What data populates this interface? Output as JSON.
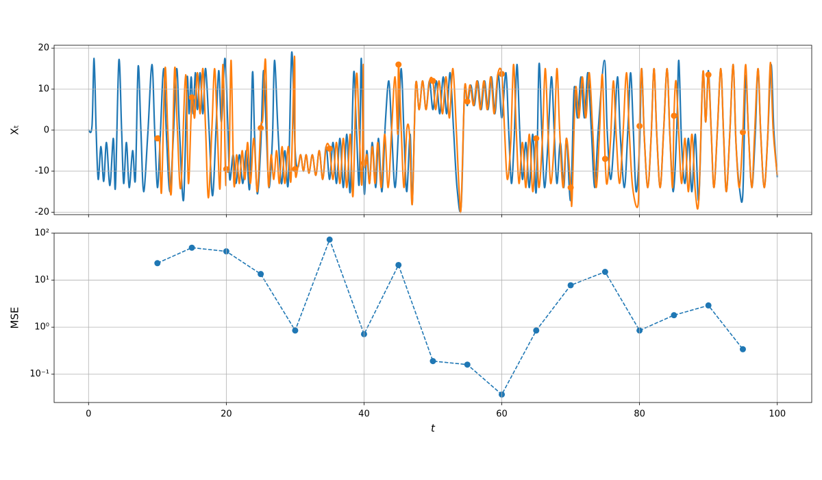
{
  "chart_data": [
    {
      "type": "line",
      "ylabel": "Xₜ",
      "ylim": [
        -20.6,
        20.7
      ],
      "yticks": [
        -20,
        -10,
        0,
        10,
        20
      ],
      "grid": true,
      "series": [
        {
          "color": "#1f77b4",
          "x": [
            0,
            0.5,
            0.8,
            1.1,
            1.4,
            1.8,
            2.2,
            2.6,
            3.1,
            3.6,
            3.9,
            4.4,
            4.8,
            5.1,
            5.5,
            5.9,
            6.4,
            6.8,
            7.2,
            7.6,
            8,
            8.6,
            9.2,
            9.6,
            10,
            10.4,
            10.9,
            11.3,
            11.8,
            12.3,
            12.8,
            13.2,
            13.8,
            14.3,
            14.6,
            14.9,
            15.2,
            15.5,
            15.8,
            16.2,
            16.6,
            17,
            17.5,
            18,
            18.5,
            18.9,
            19.3,
            19.8,
            20.2,
            20.5,
            21,
            21.4,
            21.9,
            22.4,
            22.9,
            23.4,
            23.8,
            24.1,
            24.5,
            25,
            25.4,
            25.8,
            26.2,
            26.7,
            27,
            27.5,
            28,
            28.5,
            29,
            29.5,
            30,
            30.4,
            30.8,
            31.2,
            31.6,
            32,
            32.5,
            33,
            33.5,
            34,
            34.5,
            35,
            35.5,
            36,
            36.5,
            37,
            37.5,
            38,
            38.5,
            38.9,
            39.3,
            39.6,
            40,
            40.4,
            40.8,
            41.2,
            41.7,
            42.1,
            42.6,
            43.1,
            43.6,
            44,
            44.5,
            45,
            45.4,
            45.8,
            46.2,
            46.7,
            47,
            47.5,
            48,
            48.5,
            49,
            49.5,
            50,
            50.5,
            51,
            51.5,
            52,
            52.5,
            53,
            53.5,
            54.1,
            54.6,
            55,
            55.5,
            56,
            56.5,
            57,
            57.5,
            58,
            58.5,
            59,
            59.5,
            60,
            60.6,
            61,
            61.4,
            61.8,
            62.2,
            62.6,
            63,
            63.5,
            64,
            64.5,
            65,
            65.4,
            65.8,
            66.2,
            66.7,
            67.2,
            67.6,
            68,
            68.5,
            69,
            69.4,
            70,
            70.5,
            71,
            71.5,
            72,
            72.5,
            73,
            73.5,
            74,
            74.9,
            75.3,
            75.8,
            76.3,
            76.8,
            77.2,
            77.8,
            78.3,
            78.7,
            79.1,
            79.5,
            80,
            80.3,
            80.7,
            81.2,
            81.7,
            82.1,
            82.5,
            83,
            83.5,
            84,
            84.4,
            84.9,
            85.4,
            85.7,
            86.1,
            86.6,
            87.1,
            87.6,
            88.1,
            88.6,
            89.2,
            89.6,
            90,
            90.4,
            90.8,
            91.3,
            91.8,
            92.2,
            92.6,
            93.1,
            93.6,
            94,
            94.5,
            95,
            95.4,
            95.8,
            96.3,
            96.8,
            97.2,
            97.6,
            98.1,
            98.6,
            99.1,
            99.5,
            100
          ],
          "values": [
            0,
            1,
            17.5,
            0,
            -12,
            -4,
            -12.5,
            -3,
            -13.5,
            -2,
            -14,
            17,
            0,
            -13,
            -3,
            -14,
            -5,
            -12,
            15.5,
            0,
            -15,
            -1,
            16,
            0,
            -14,
            -2,
            15,
            -1,
            -15,
            -2,
            15,
            0,
            -17,
            12.5,
            4,
            13,
            4,
            14,
            5,
            14,
            4,
            15,
            0,
            -16,
            0,
            14.5,
            2,
            17.5,
            2,
            -12,
            -6,
            -13,
            -6,
            -13,
            -5,
            -14,
            14,
            -1,
            -15.5,
            -4,
            14.5,
            0,
            -14,
            -2,
            17,
            0,
            -13,
            -5,
            -13,
            19,
            -5,
            -9,
            -6,
            -10,
            -6,
            -10.5,
            -6,
            -11,
            -5,
            -12,
            -4,
            -12,
            -3,
            -13,
            -2,
            -14,
            -1,
            -15,
            14,
            0,
            -13,
            17.5,
            -15,
            -5,
            -13,
            -3,
            -14,
            -2,
            -15,
            2,
            12,
            0,
            -14,
            0,
            15,
            -1,
            -15,
            -1,
            -18,
            11,
            5,
            12,
            5,
            12,
            5,
            12,
            4,
            13,
            4,
            14,
            0,
            -14,
            -18.5,
            10,
            6,
            11,
            6,
            12,
            5,
            12,
            5,
            13,
            4,
            13.5,
            3,
            14,
            0,
            -13,
            -2,
            16,
            0,
            -12,
            -3,
            -14,
            -1,
            -15,
            16,
            0,
            -14,
            -3,
            13,
            0,
            -13,
            -3,
            -14,
            -2,
            -17,
            10,
            3,
            13,
            3,
            14,
            0,
            -14,
            0,
            17,
            0,
            -12,
            -2,
            13,
            -1,
            -14,
            0,
            14,
            0,
            -15,
            -4,
            15,
            -2,
            -14,
            -1,
            15,
            -1,
            -14,
            0,
            15,
            -1,
            -15,
            0,
            17,
            -3,
            -13,
            -2,
            -15,
            -1,
            -17,
            14,
            2,
            14.5,
            0,
            -14,
            0,
            15,
            -1,
            -15,
            -1,
            16,
            -3,
            -14,
            -15.5,
            13,
            0,
            -14,
            -1,
            15,
            -1,
            -14,
            -2,
            16,
            0,
            -11.5
          ]
        },
        {
          "color": "#ff7f0e",
          "x": [
            10,
            10.3,
            10.6,
            11.1,
            11.5,
            12,
            12.5,
            12.9,
            13.4,
            14.1,
            14.5,
            15,
            15.4,
            15.8,
            16.2,
            16.6,
            17,
            17.4,
            17.9,
            18.3,
            18.7,
            19.1,
            19.5,
            19.9,
            20,
            20.4,
            20.7,
            21.1,
            21.5,
            21.9,
            22.3,
            22.7,
            23.1,
            23.5,
            24,
            24.5,
            25,
            25.3,
            25.7,
            26.1,
            26.5,
            26.9,
            27.3,
            27.7,
            28.1,
            28.5,
            29,
            29.4,
            29.9,
            30,
            30.4,
            30.8,
            31.2,
            31.6,
            32,
            32.5,
            33,
            33.5,
            34,
            34.5,
            35,
            35.5,
            36,
            36.5,
            37,
            37.5,
            38,
            38.4,
            38.9,
            39.3,
            39.7,
            39.9,
            40,
            40.4,
            40.8,
            41.2,
            41.6,
            42,
            42.5,
            43,
            43.5,
            44,
            44.5,
            44.9,
            45,
            45.4,
            45.8,
            46.2,
            46.6,
            47,
            47.5,
            48,
            48.5,
            49,
            49.5,
            50,
            50.4,
            50.9,
            51.4,
            51.9,
            52.4,
            52.9,
            53.4,
            53.8,
            54.1,
            54.6,
            55,
            55.4,
            55.9,
            56.4,
            56.9,
            57.4,
            57.9,
            58.4,
            58.9,
            59.4,
            60,
            60.4,
            60.8,
            61.3,
            61.7,
            62.1,
            62.5,
            63,
            63.5,
            64,
            64.5,
            65,
            65.4,
            65.9,
            66.3,
            66.7,
            67.1,
            67.6,
            68,
            68.4,
            68.9,
            69.4,
            70,
            70.2,
            70.7,
            71.2,
            71.7,
            72.2,
            72.7,
            73.2,
            73.7,
            74.2,
            74.6,
            75,
            75.3,
            75.8,
            76.2,
            76.6,
            77.1,
            77.6,
            78.1,
            78.5,
            79,
            79.8,
            80,
            80.3,
            80.7,
            81.2,
            81.7,
            82.1,
            82.5,
            83,
            83.5,
            84,
            84.4,
            84.8,
            85,
            85.3,
            85.7,
            86.1,
            86.6,
            87.1,
            87.6,
            88.1,
            88.6,
            89.2,
            89.6,
            90,
            90.4,
            90.8,
            91.3,
            91.8,
            92.2,
            92.6,
            93.1,
            93.6,
            94,
            94.5,
            95,
            95.4,
            95.8,
            96.3,
            96.7,
            97.2,
            97.6,
            98.1,
            98.6,
            99,
            99.4,
            100
          ],
          "values": [
            -2,
            -2.5,
            -15,
            15,
            0,
            -15.5,
            15,
            0,
            -14,
            13.5,
            -13,
            8,
            3,
            14,
            4,
            15,
            0,
            -16.5,
            0,
            15,
            0,
            -14,
            16,
            -12,
            -9.5,
            -8,
            17,
            -13,
            -6,
            -13,
            -5,
            -12,
            -3,
            -13,
            -2,
            -15,
            0.5,
            3,
            17,
            -13,
            -6,
            -12,
            -5,
            -13,
            -4,
            -13,
            -4,
            -12,
            18,
            -9.5,
            -9,
            -6,
            -10,
            -6,
            -10.5,
            -6,
            -11,
            -5,
            -12,
            -4,
            -4.5,
            -12,
            -3,
            -13,
            -2,
            -14,
            -1,
            -16,
            13.5,
            0,
            -13,
            16,
            -8,
            -6,
            -13,
            -4,
            -13,
            -3,
            -14,
            -1,
            -14,
            0,
            13,
            -1,
            16,
            0,
            -14,
            0,
            -1,
            -18,
            11,
            5,
            12,
            5,
            12,
            12,
            5,
            12,
            4,
            13,
            3,
            15,
            0,
            -14.5,
            -18.5,
            10,
            7,
            11,
            6,
            12,
            5,
            12,
            5,
            13,
            4,
            13.5,
            13.7,
            0,
            -12,
            -3,
            16,
            0,
            -13,
            -3,
            -14,
            -1,
            -15,
            -2,
            -14,
            -2,
            15,
            0,
            -13,
            -3,
            15,
            0,
            -14,
            -2,
            -14,
            -17,
            10,
            3,
            13,
            3,
            14,
            0,
            -14,
            0,
            13.5,
            -7,
            -13,
            -2,
            12,
            -1,
            -13,
            -1,
            14,
            0,
            -14,
            -18,
            1,
            15,
            -2,
            -14,
            -1,
            15,
            -1,
            -14,
            0,
            15,
            -1,
            -14,
            3.5,
            12,
            -1,
            -13,
            -2,
            -15,
            -1,
            -15,
            -17,
            14,
            2,
            13.5,
            0,
            -14,
            0,
            15,
            -1,
            -15,
            -1,
            16,
            -3,
            -14,
            -0.5,
            16,
            0,
            -14,
            -1,
            15,
            -1,
            -14,
            -2,
            16.5,
            0,
            -11
          ]
        }
      ],
      "points": {
        "color": "#ff7f0e",
        "x": [
          10,
          15,
          20,
          25,
          30,
          35,
          40,
          45,
          50,
          55,
          60,
          65,
          70,
          75,
          80,
          85,
          90,
          95
        ],
        "values": [
          -2,
          8,
          -9.5,
          0.5,
          -9.5,
          -4.5,
          -8,
          16,
          12,
          7,
          13.7,
          -2,
          -14,
          -7,
          1,
          3.5,
          13.5,
          -0.5
        ]
      }
    },
    {
      "type": "line",
      "ylabel": "MSE",
      "xlabel": "t",
      "log": true,
      "grid": true,
      "linestyle": "dashed",
      "marker": "o",
      "color": "#1f77b4",
      "xlim": [
        -5,
        105
      ],
      "xticks": [
        0,
        20,
        40,
        60,
        80,
        100
      ],
      "ylim": [
        0.025,
        100
      ],
      "yticks": [
        {
          "value": 0.1,
          "label": "10⁻¹"
        },
        {
          "value": 1,
          "label": "10⁰"
        },
        {
          "value": 10,
          "label": "10¹"
        },
        {
          "value": 100,
          "label": "10²"
        }
      ],
      "x": [
        10,
        15,
        20,
        25,
        30,
        35,
        40,
        45,
        50,
        55,
        60,
        65,
        70,
        75,
        80,
        85,
        90,
        95
      ],
      "values": [
        23,
        49,
        41,
        13.5,
        0.85,
        73,
        0.71,
        21,
        0.19,
        0.16,
        0.037,
        0.85,
        7.8,
        15,
        0.85,
        1.8,
        2.9,
        0.34
      ]
    }
  ]
}
